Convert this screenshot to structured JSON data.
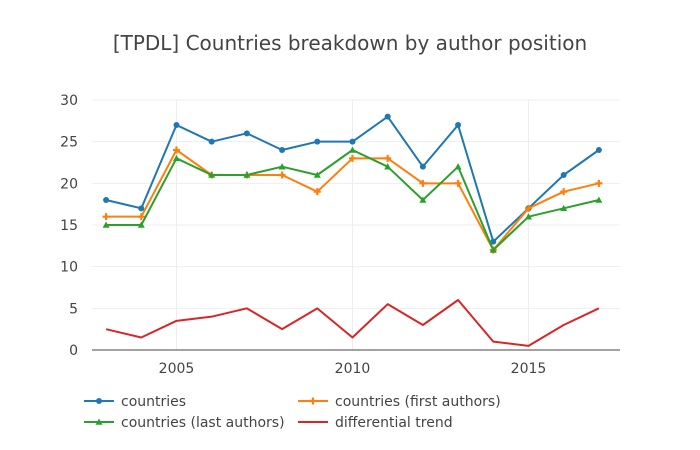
{
  "chart_data": {
    "type": "line",
    "title": "[TPDL] Countries breakdown by author position",
    "xlabel": "",
    "ylabel": "",
    "x": [
      2003,
      2004,
      2005,
      2006,
      2007,
      2008,
      2009,
      2010,
      2011,
      2012,
      2013,
      2014,
      2015,
      2016,
      2017
    ],
    "xlim": [
      2002.6,
      2017.6
    ],
    "ylim": [
      0,
      30
    ],
    "xticks": [
      2005,
      2010,
      2015
    ],
    "xtick_labels": [
      "2005",
      "2010",
      "2015"
    ],
    "yticks": [
      0,
      5,
      10,
      15,
      20,
      25,
      30
    ],
    "ytick_labels": [
      "0",
      "5",
      "10",
      "15",
      "20",
      "25",
      "30"
    ],
    "grid": true,
    "legend_position": "bottom",
    "series": [
      {
        "name": "countries",
        "color": "#1f77b4",
        "marker": "circle",
        "values": [
          18,
          17,
          27,
          25,
          26,
          24,
          25,
          25,
          28,
          22,
          27,
          13,
          17,
          21,
          24
        ]
      },
      {
        "name": "countries (first authors)",
        "color": "#ff7f0e",
        "marker": "cross",
        "values": [
          16,
          16,
          24,
          21,
          21,
          21,
          19,
          23,
          23,
          20,
          20,
          12,
          17,
          19,
          20
        ]
      },
      {
        "name": "countries (last authors)",
        "color": "#2ca02c",
        "marker": "triangle",
        "values": [
          15,
          15,
          23,
          21,
          21,
          22,
          21,
          24,
          22,
          18,
          22,
          12,
          16,
          17,
          18
        ]
      },
      {
        "name": "differential trend",
        "color": "#d62728",
        "marker": "none",
        "values": [
          2.5,
          1.5,
          3.5,
          4,
          5,
          2.5,
          5,
          1.5,
          5.5,
          3,
          6,
          1,
          0.5,
          3,
          5
        ]
      }
    ]
  }
}
